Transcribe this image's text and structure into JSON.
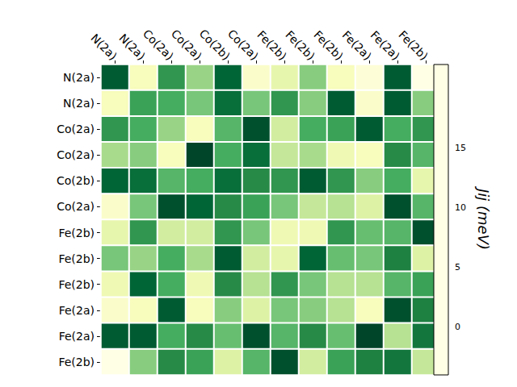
{
  "chart_data": {
    "type": "heatmap",
    "x_categories": [
      "N(2a)",
      "N(2a)",
      "Co(2a)",
      "Co(2a)",
      "Co(2b)",
      "Co(2a)",
      "Fe(2b)",
      "Fe(2b)",
      "Fe(2b)",
      "Fe(2a)",
      "Fe(2a)",
      "Fe(2b)"
    ],
    "y_categories": [
      "N(2a)",
      "N(2a)",
      "Co(2a)",
      "Co(2a)",
      "Co(2b)",
      "Co(2a)",
      "Fe(2b)",
      "Fe(2b)",
      "Fe(2b)",
      "Fe(2a)",
      "Fe(2a)",
      "Fe(2b)"
    ],
    "cells": [
      [
        20,
        -1,
        14,
        7,
        19,
        -2,
        1,
        8,
        -1,
        -3,
        20,
        -4
      ],
      [
        -1,
        13,
        12,
        9,
        18,
        9,
        14,
        8,
        20,
        -2,
        20,
        8
      ],
      [
        14,
        12,
        7,
        -1,
        11,
        21,
        3,
        12,
        13,
        20,
        12,
        14
      ],
      [
        6,
        8,
        -1,
        22,
        12,
        18,
        4,
        6,
        0,
        -1,
        15,
        11
      ],
      [
        19,
        18,
        11,
        12,
        18,
        15,
        14,
        20,
        14,
        8,
        12,
        1
      ],
      [
        -2,
        9,
        21,
        19,
        15,
        13,
        9,
        4,
        5,
        2,
        21,
        11
      ],
      [
        1,
        14,
        3,
        3,
        14,
        9,
        0,
        0,
        14,
        10,
        11,
        21
      ],
      [
        9,
        7,
        12,
        6,
        20,
        3,
        1,
        19,
        10,
        9,
        16,
        2
      ],
      [
        0,
        19,
        12,
        0,
        15,
        5,
        14,
        9,
        5,
        5,
        11,
        13
      ],
      [
        -2,
        -1,
        20,
        -1,
        8,
        2,
        9,
        8,
        5,
        -1,
        21,
        16
      ],
      [
        20,
        20,
        12,
        15,
        10,
        21,
        11,
        15,
        10,
        22,
        5,
        17
      ],
      [
        -4,
        8,
        15,
        13,
        2,
        11,
        21,
        3,
        13,
        16,
        17,
        4
      ]
    ],
    "colorbar": {
      "label": "Jij (meV)",
      "lim": [
        -4,
        22
      ],
      "ticks": [
        0,
        5,
        10,
        15
      ]
    }
  }
}
